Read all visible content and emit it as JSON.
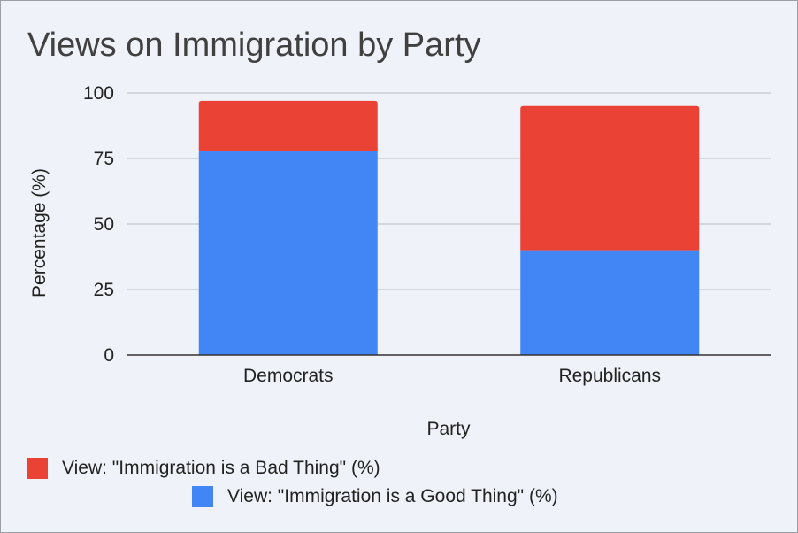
{
  "chart_data": {
    "type": "bar",
    "stacked": true,
    "title": "Views on Immigration by Party",
    "xlabel": "Party",
    "ylabel": "Percentage (%)",
    "categories": [
      "Democrats",
      "Republicans"
    ],
    "ylim": [
      0,
      100
    ],
    "yticks": [
      0,
      25,
      50,
      75,
      100
    ],
    "grid": true,
    "legend": "bottom",
    "series": [
      {
        "name": "View: \"Immigration is a Good Thing\" (%)",
        "values": [
          78,
          40
        ],
        "color": "#4285f4"
      },
      {
        "name": "View: \"Immigration is a Bad Thing\" (%)",
        "values": [
          19,
          55
        ],
        "color": "#ea4335"
      }
    ]
  }
}
